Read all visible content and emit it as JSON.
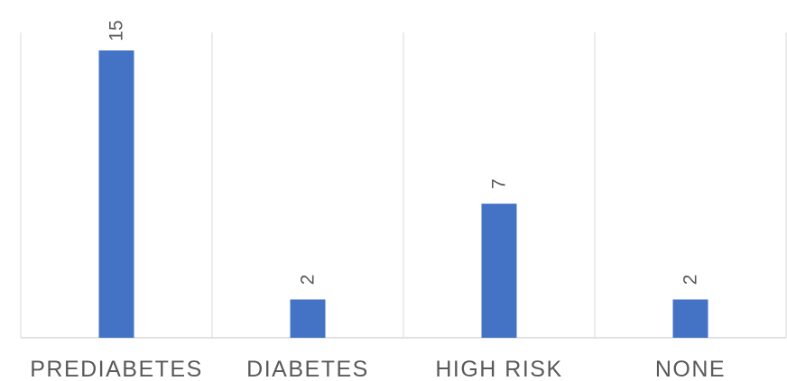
{
  "chart_data": {
    "type": "bar",
    "categories": [
      "PREDIABETES",
      "DIABETES",
      "HIGH RISK",
      "NONE"
    ],
    "values": [
      15,
      2,
      7,
      2
    ],
    "title": "",
    "xlabel": "",
    "ylabel": "",
    "ylim": [
      0,
      15
    ],
    "grid": "vertical category separators",
    "legend": "none",
    "data_labels": "rotated, above bars",
    "colors": {
      "bar": "#4472C4",
      "grid": "#d9d9d9",
      "text": "#595959"
    }
  }
}
